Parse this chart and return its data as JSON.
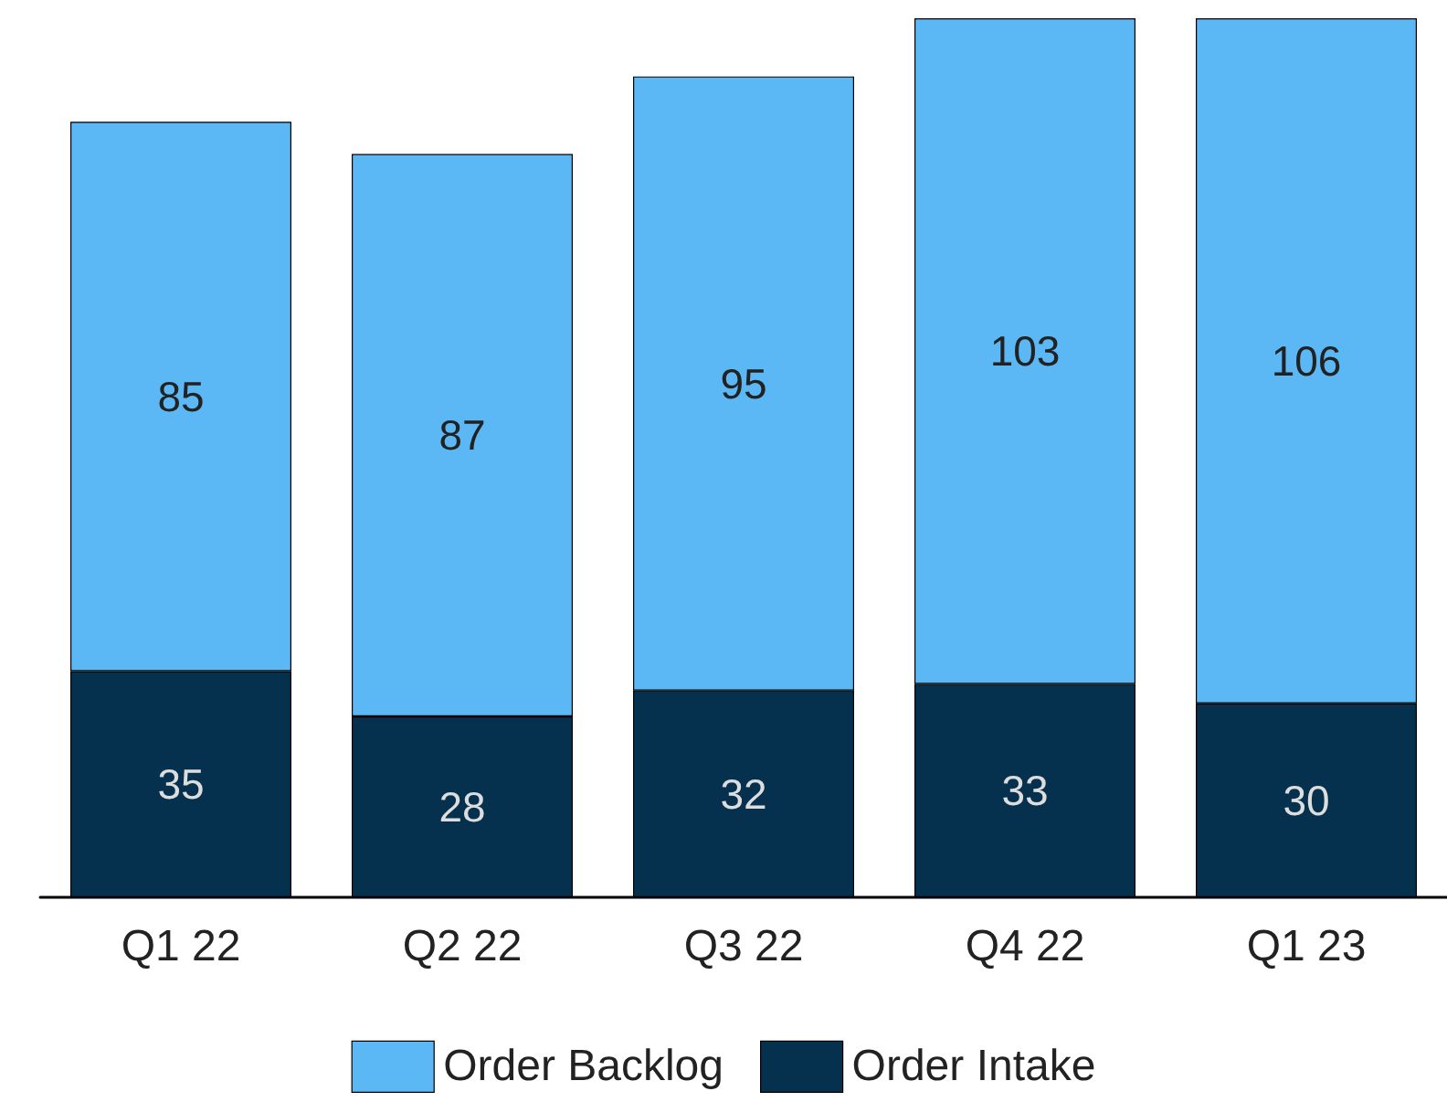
{
  "chart_data": {
    "type": "bar",
    "categories": [
      "Q1 22",
      "Q2 22",
      "Q3 22",
      "Q4 22",
      "Q1 23"
    ],
    "stacked": true,
    "series": [
      {
        "name": "Order Intake",
        "color": "#05314f",
        "values": [
          35,
          28,
          32,
          33,
          30
        ]
      },
      {
        "name": "Order Backlog",
        "color": "#5bb8f5",
        "values": [
          85,
          87,
          95,
          103,
          106
        ]
      }
    ],
    "data_labels": true,
    "legend": "bottom",
    "grid": false
  }
}
